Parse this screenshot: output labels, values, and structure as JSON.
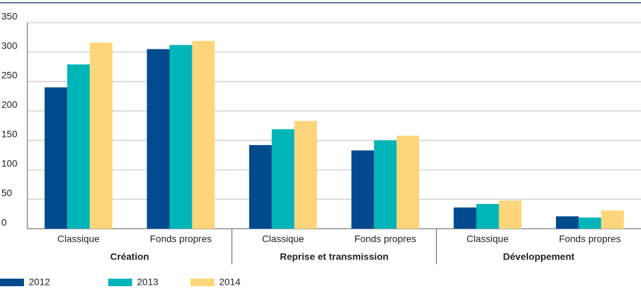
{
  "chart_data": {
    "type": "bar",
    "categories": [
      "Classique",
      "Fonds propres",
      "Classique",
      "Fonds propres",
      "Classique",
      "Fonds propres"
    ],
    "groups": [
      "Création",
      "Reprise et transmission",
      "Développement"
    ],
    "series": [
      {
        "name": "2012",
        "color": "#004a8d",
        "values": [
          240,
          305,
          142,
          133,
          36,
          21
        ]
      },
      {
        "name": "2013",
        "color": "#00b5b8",
        "values": [
          279,
          312,
          169,
          150,
          42,
          19
        ]
      },
      {
        "name": "2014",
        "color": "#fdd57a",
        "values": [
          316,
          319,
          183,
          158,
          48,
          31
        ]
      }
    ],
    "ylim": [
      0,
      350
    ],
    "yticks": [
      0,
      50,
      100,
      150,
      200,
      250,
      300,
      350
    ],
    "grid": true,
    "legend": "bottom"
  }
}
